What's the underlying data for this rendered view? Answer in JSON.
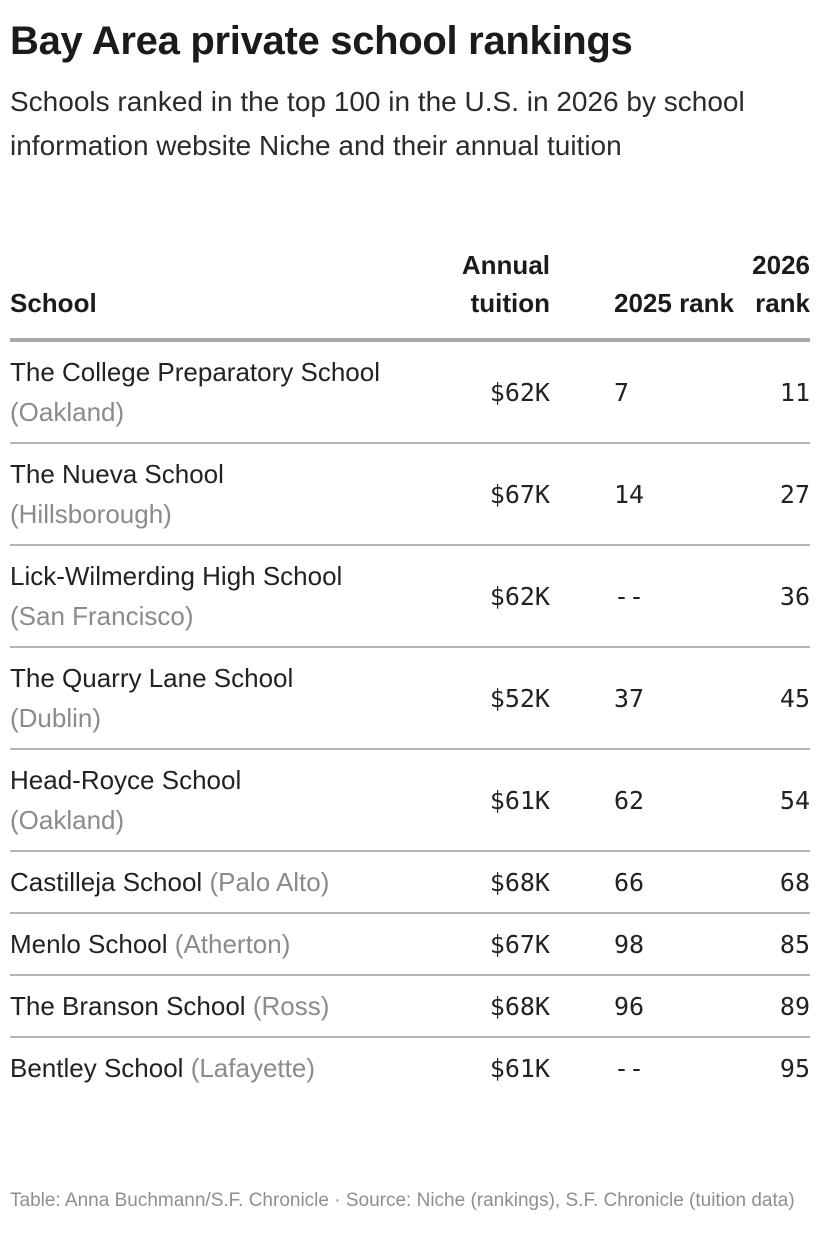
{
  "chart_data": {
    "type": "table",
    "title": "Bay Area private school rankings",
    "subtitle": "Schools ranked in the top 100 in the U.S. in 2026 by school information website Niche and their annual tuition",
    "columns": {
      "school": "School",
      "tuition": "Annual tuition",
      "rank_2025": "2025 rank",
      "rank_2026": "2026 rank"
    },
    "rows": [
      {
        "school": "The College Preparatory School",
        "location": "(Oakland)",
        "tuition": "$62K",
        "rank_2025": "7",
        "rank_2026": "11"
      },
      {
        "school": "The Nueva School",
        "location": "(Hillsborough)",
        "tuition": "$67K",
        "rank_2025": "14",
        "rank_2026": "27"
      },
      {
        "school": "Lick-Wilmerding High School",
        "location": "(San Francisco)",
        "tuition": "$62K",
        "rank_2025": "--",
        "rank_2026": "36"
      },
      {
        "school": "The Quarry Lane School",
        "location": "(Dublin)",
        "tuition": "$52K",
        "rank_2025": "37",
        "rank_2026": "45"
      },
      {
        "school": "Head-Royce School",
        "location": "(Oakland)",
        "tuition": "$61K",
        "rank_2025": "62",
        "rank_2026": "54"
      },
      {
        "school": "Castilleja School",
        "location": "(Palo Alto)",
        "tuition": "$68K",
        "rank_2025": "66",
        "rank_2026": "68"
      },
      {
        "school": "Menlo School",
        "location": "(Atherton)",
        "tuition": "$67K",
        "rank_2025": "98",
        "rank_2026": "85"
      },
      {
        "school": "The Branson School",
        "location": "(Ross)",
        "tuition": "$68K",
        "rank_2025": "96",
        "rank_2026": "89"
      },
      {
        "school": "Bentley School",
        "location": "(Lafayette)",
        "tuition": "$61K",
        "rank_2025": "--",
        "rank_2026": "95"
      }
    ],
    "footer": "Table: Anna Buchmann/S.F. Chronicle · Source: Niche (rankings), S.F. Chronicle (tuition data)"
  }
}
